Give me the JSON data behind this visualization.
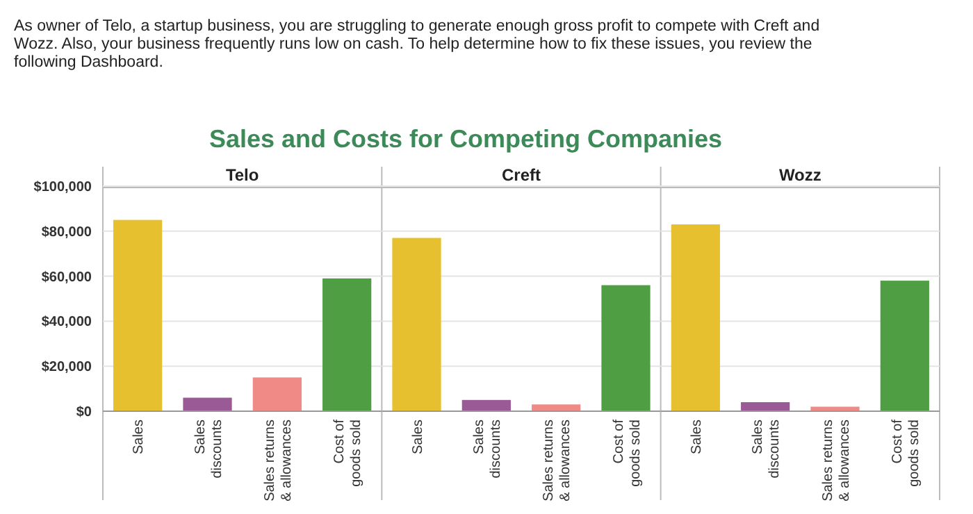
{
  "chart_data": [
    {
      "type": "bar",
      "title": "Sales and Costs for Competing Companies",
      "subtitle": "Telo",
      "annotations": [
        "As owner of Telo, a startup business, you are struggling to generate enough gross profit to compete with Creft and Wozz. Also, your business frequently runs low on cash. To help determine how to fix these issues, you review the following Dashboard."
      ],
      "categories": [
        "Sales",
        "Sales discounts",
        "Sales returns & allowances",
        "Cost of goods sold"
      ],
      "values": [
        85000,
        6000,
        15000,
        59000
      ],
      "colors": [
        "#e6c02f",
        "#9a5a96",
        "#ef8a86",
        "#4f9e44"
      ],
      "ylim": [
        0,
        100000
      ],
      "yticks": [
        {
          "value": 0,
          "label": "$0"
        },
        {
          "value": 20000,
          "label": "$20,000"
        },
        {
          "value": 40000,
          "label": "$40,000"
        },
        {
          "value": 60000,
          "label": "$60,000"
        },
        {
          "value": 80000,
          "label": "$80,000"
        },
        {
          "value": 100000,
          "label": "$100,000"
        }
      ],
      "grid": "y"
    },
    {
      "type": "bar",
      "subtitle": "Creft",
      "categories": [
        "Sales",
        "Sales discounts",
        "Sales returns & allowances",
        "Cost of goods sold"
      ],
      "values": [
        77000,
        5000,
        3000,
        56000
      ],
      "colors": [
        "#e6c02f",
        "#9a5a96",
        "#ef8a86",
        "#4f9e44"
      ],
      "ylim": [
        0,
        100000
      ],
      "yticks": [
        0,
        20000,
        40000,
        60000,
        80000,
        100000
      ],
      "grid": "y",
      "tick_labels": "x"
    },
    {
      "type": "bar",
      "subtitle": "Wozz",
      "categories": [
        "Sales",
        "Sales discounts",
        "Sales returns & allowances",
        "Cost of goods sold"
      ],
      "values": [
        83000,
        4000,
        2000,
        58000
      ],
      "colors": [
        "#e6c02f",
        "#9a5a96",
        "#ef8a86",
        "#4f9e44"
      ],
      "ylim": [
        0,
        100000
      ],
      "yticks": [
        0,
        20000,
        40000,
        60000,
        80000,
        100000
      ],
      "grid": "y",
      "tick_labels": "x"
    }
  ]
}
